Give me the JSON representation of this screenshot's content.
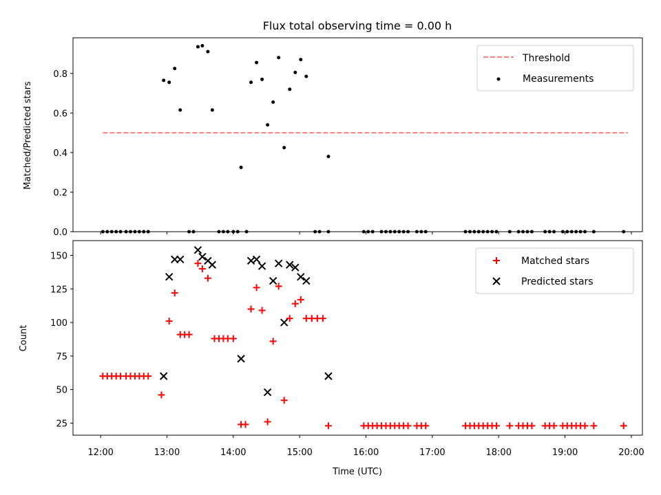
{
  "chart_data": [
    {
      "type": "scatter",
      "title": "Flux total observing time = 0.00 h",
      "ylabel": "Matched/Predicted stars",
      "xlabel": "",
      "ylim": [
        0,
        0.98
      ],
      "yticks": [
        "0.0",
        "0.2",
        "0.4",
        "0.6",
        "0.8"
      ],
      "ytick_values": [
        0,
        0.2,
        0.4,
        0.6,
        0.8
      ],
      "legend": {
        "placement": "top-right",
        "threshold_label": "Threshold",
        "measurements_label": "Measurements"
      },
      "colors": {
        "threshold": "#ff7f7f",
        "measurements": "#000000"
      },
      "threshold": {
        "value": 0.5,
        "x_start": "12:02",
        "x_end": "19:57"
      },
      "series": [
        {
          "name": "Measurements",
          "points": [
            [
              "12:02",
              0
            ],
            [
              "12:06",
              0
            ],
            [
              "12:10",
              0
            ],
            [
              "12:14",
              0
            ],
            [
              "12:18",
              0
            ],
            [
              "12:23",
              0
            ],
            [
              "12:27",
              0
            ],
            [
              "12:31",
              0
            ],
            [
              "12:35",
              0
            ],
            [
              "12:39",
              0
            ],
            [
              "12:43",
              0
            ],
            [
              "12:57",
              0.765
            ],
            [
              "13:02",
              0.755
            ],
            [
              "13:07",
              0.825
            ],
            [
              "13:12",
              0.615
            ],
            [
              "13:20",
              0
            ],
            [
              "13:24",
              0
            ],
            [
              "13:28",
              0.935
            ],
            [
              "13:32",
              0.94
            ],
            [
              "13:37",
              0.91
            ],
            [
              "13:41",
              0.615
            ],
            [
              "13:47",
              0
            ],
            [
              "13:51",
              0
            ],
            [
              "13:55",
              0
            ],
            [
              "14:00",
              0
            ],
            [
              "14:04",
              0
            ],
            [
              "14:07",
              0.325
            ],
            [
              "14:12",
              0
            ],
            [
              "14:16",
              0.755
            ],
            [
              "14:21",
              0.855
            ],
            [
              "14:26",
              0.77
            ],
            [
              "14:31",
              0.54
            ],
            [
              "14:36",
              0.655
            ],
            [
              "14:41",
              0.88
            ],
            [
              "14:46",
              0.425
            ],
            [
              "14:51",
              0.72
            ],
            [
              "14:56",
              0.805
            ],
            [
              "15:01",
              0.87
            ],
            [
              "15:06",
              0.785
            ],
            [
              "15:14",
              0
            ],
            [
              "15:18",
              0
            ],
            [
              "15:26",
              0
            ],
            [
              "15:26",
              0.38
            ],
            [
              "15:58",
              0
            ],
            [
              "16:02",
              0
            ],
            [
              "16:06",
              0
            ],
            [
              "16:14",
              0
            ],
            [
              "16:18",
              0
            ],
            [
              "16:22",
              0
            ],
            [
              "16:26",
              0
            ],
            [
              "16:30",
              0
            ],
            [
              "16:34",
              0
            ],
            [
              "16:38",
              0
            ],
            [
              "16:46",
              0
            ],
            [
              "16:50",
              0
            ],
            [
              "16:54",
              0
            ],
            [
              "17:30",
              0
            ],
            [
              "17:34",
              0
            ],
            [
              "17:38",
              0
            ],
            [
              "17:42",
              0
            ],
            [
              "17:46",
              0
            ],
            [
              "17:50",
              0
            ],
            [
              "17:54",
              0
            ],
            [
              "17:58",
              0
            ],
            [
              "18:10",
              0
            ],
            [
              "18:18",
              0
            ],
            [
              "18:22",
              0
            ],
            [
              "18:26",
              0
            ],
            [
              "18:30",
              0
            ],
            [
              "18:42",
              0
            ],
            [
              "18:46",
              0
            ],
            [
              "18:50",
              0
            ],
            [
              "18:58",
              0
            ],
            [
              "19:02",
              0
            ],
            [
              "19:06",
              0
            ],
            [
              "19:10",
              0
            ],
            [
              "19:14",
              0
            ],
            [
              "19:18",
              0
            ],
            [
              "19:26",
              0
            ],
            [
              "19:53",
              0
            ]
          ]
        }
      ]
    },
    {
      "type": "scatter",
      "xlabel": "Time (UTC)",
      "ylabel": "Count",
      "xlim": [
        "11:35",
        "20:10"
      ],
      "xticks": [
        "12:00",
        "13:00",
        "14:00",
        "15:00",
        "16:00",
        "17:00",
        "18:00",
        "19:00",
        "20:00"
      ],
      "ylim": [
        16,
        161
      ],
      "yticks": [
        "25",
        "50",
        "75",
        "100",
        "125",
        "150"
      ],
      "ytick_values": [
        25,
        50,
        75,
        100,
        125,
        150
      ],
      "legend": {
        "placement": "top-right",
        "matched_label": "Matched stars",
        "predicted_label": "Predicted stars"
      },
      "colors": {
        "matched": "#ff0000",
        "predicted": "#000000"
      },
      "series": [
        {
          "name": "Matched stars",
          "points": [
            [
              "12:02",
              60
            ],
            [
              "12:06",
              60
            ],
            [
              "12:10",
              60
            ],
            [
              "12:14",
              60
            ],
            [
              "12:18",
              60
            ],
            [
              "12:23",
              60
            ],
            [
              "12:27",
              60
            ],
            [
              "12:31",
              60
            ],
            [
              "12:35",
              60
            ],
            [
              "12:39",
              60
            ],
            [
              "12:43",
              60
            ],
            [
              "12:55",
              46
            ],
            [
              "13:02",
              101
            ],
            [
              "13:07",
              122
            ],
            [
              "13:12",
              91
            ],
            [
              "13:16",
              91
            ],
            [
              "13:20",
              91
            ],
            [
              "13:28",
              144
            ],
            [
              "13:32",
              140
            ],
            [
              "13:37",
              133
            ],
            [
              "13:43",
              88
            ],
            [
              "13:47",
              88
            ],
            [
              "13:51",
              88
            ],
            [
              "13:55",
              88
            ],
            [
              "14:00",
              88
            ],
            [
              "14:07",
              24
            ],
            [
              "14:11",
              24
            ],
            [
              "14:16",
              110
            ],
            [
              "14:21",
              126
            ],
            [
              "14:26",
              109
            ],
            [
              "14:31",
              26
            ],
            [
              "14:36",
              86
            ],
            [
              "14:41",
              127
            ],
            [
              "14:46",
              42
            ],
            [
              "14:51",
              103
            ],
            [
              "14:56",
              114
            ],
            [
              "15:01",
              117
            ],
            [
              "15:06",
              103
            ],
            [
              "15:11",
              103
            ],
            [
              "15:16",
              103
            ],
            [
              "15:21",
              103
            ],
            [
              "15:26",
              23
            ],
            [
              "15:58",
              23
            ],
            [
              "16:02",
              23
            ],
            [
              "16:06",
              23
            ],
            [
              "16:10",
              23
            ],
            [
              "16:14",
              23
            ],
            [
              "16:18",
              23
            ],
            [
              "16:22",
              23
            ],
            [
              "16:26",
              23
            ],
            [
              "16:30",
              23
            ],
            [
              "16:34",
              23
            ],
            [
              "16:38",
              23
            ],
            [
              "16:46",
              23
            ],
            [
              "16:50",
              23
            ],
            [
              "16:54",
              23
            ],
            [
              "17:30",
              23
            ],
            [
              "17:34",
              23
            ],
            [
              "17:38",
              23
            ],
            [
              "17:42",
              23
            ],
            [
              "17:46",
              23
            ],
            [
              "17:50",
              23
            ],
            [
              "17:54",
              23
            ],
            [
              "17:58",
              23
            ],
            [
              "18:10",
              23
            ],
            [
              "18:18",
              23
            ],
            [
              "18:22",
              23
            ],
            [
              "18:26",
              23
            ],
            [
              "18:30",
              23
            ],
            [
              "18:42",
              23
            ],
            [
              "18:46",
              23
            ],
            [
              "18:50",
              23
            ],
            [
              "18:58",
              23
            ],
            [
              "19:02",
              23
            ],
            [
              "19:06",
              23
            ],
            [
              "19:10",
              23
            ],
            [
              "19:14",
              23
            ],
            [
              "19:18",
              23
            ],
            [
              "19:26",
              23
            ],
            [
              "19:53",
              23
            ]
          ]
        },
        {
          "name": "Predicted stars",
          "points": [
            [
              "12:57",
              60
            ],
            [
              "13:02",
              134
            ],
            [
              "13:07",
              147
            ],
            [
              "13:12",
              147
            ],
            [
              "13:28",
              154
            ],
            [
              "13:32",
              149
            ],
            [
              "13:37",
              146
            ],
            [
              "13:41",
              143
            ],
            [
              "14:07",
              73
            ],
            [
              "14:16",
              146
            ],
            [
              "14:21",
              147
            ],
            [
              "14:26",
              142
            ],
            [
              "14:31",
              48
            ],
            [
              "14:36",
              131
            ],
            [
              "14:41",
              144
            ],
            [
              "14:46",
              100
            ],
            [
              "14:51",
              143
            ],
            [
              "14:56",
              141
            ],
            [
              "15:01",
              134
            ],
            [
              "15:06",
              131
            ],
            [
              "15:26",
              60
            ]
          ]
        }
      ]
    }
  ]
}
